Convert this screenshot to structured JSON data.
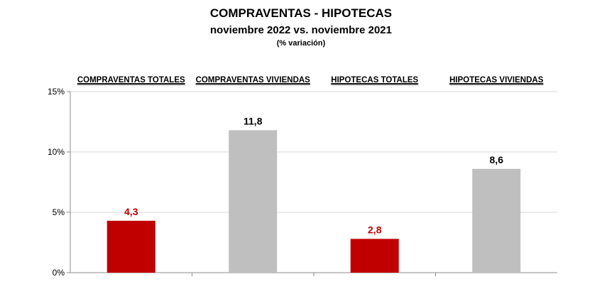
{
  "chart_data": {
    "type": "bar",
    "title": "COMPRAVENTAS - HIPOTECAS",
    "subtitle": "noviembre 2022  vs. noviembre 2021",
    "note": "(% variación)",
    "categories": [
      "COMPRAVENTAS TOTALES",
      "COMPRAVENTAS VIVIENDAS",
      "HIPOTECAS TOTALES",
      "HIPOTECAS VIVIENDAS"
    ],
    "values": [
      4.3,
      11.8,
      2.8,
      8.6
    ],
    "value_labels": [
      "4,3",
      "11,8",
      "2,8",
      "8,6"
    ],
    "bar_colors": [
      "#c00000",
      "#bfbfbf",
      "#c00000",
      "#bfbfbf"
    ],
    "label_colors": [
      "#c00000",
      "#000000",
      "#c00000",
      "#000000"
    ],
    "ylim": [
      0,
      15
    ],
    "yticks": [
      0,
      5,
      10,
      15
    ],
    "ytick_labels": [
      "0%",
      "5%",
      "10%",
      "15%"
    ],
    "grid": true,
    "category_labels_position": "top"
  }
}
